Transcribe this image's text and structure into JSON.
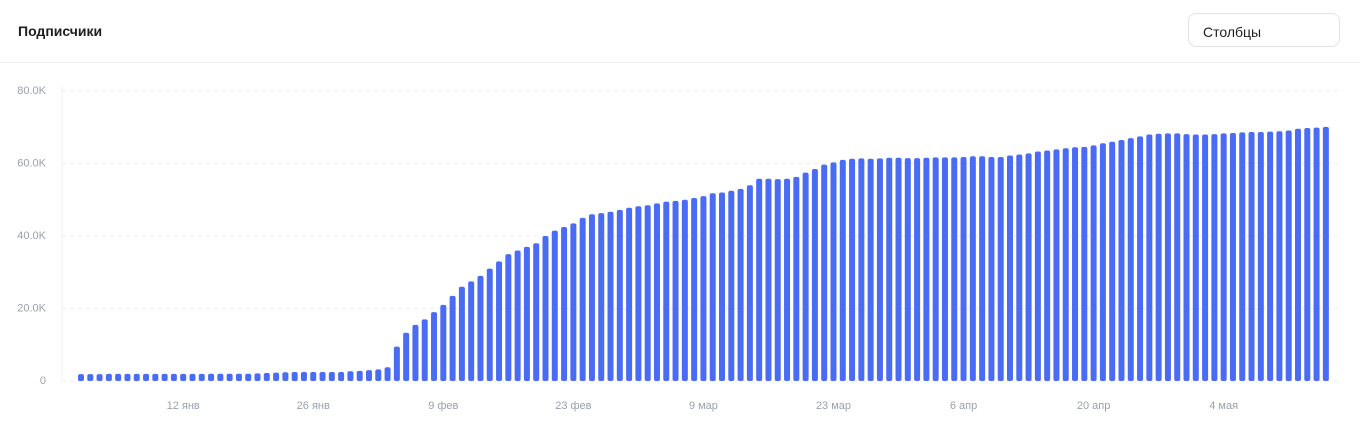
{
  "header": {
    "title": "Подписчики",
    "view_select": "Столбцы"
  },
  "chart_data": {
    "type": "bar",
    "color": "#4a6cf4",
    "grid": true,
    "categories": [
      null,
      null,
      null,
      null,
      null,
      null,
      null,
      null,
      null,
      null,
      null,
      "12 янв",
      null,
      null,
      null,
      null,
      null,
      null,
      null,
      null,
      null,
      null,
      null,
      null,
      null,
      "26 янв",
      null,
      null,
      null,
      null,
      null,
      null,
      null,
      null,
      null,
      null,
      null,
      null,
      null,
      "9 фев",
      null,
      null,
      null,
      null,
      null,
      null,
      null,
      null,
      null,
      null,
      null,
      null,
      null,
      "23 фев",
      null,
      null,
      null,
      null,
      null,
      null,
      null,
      null,
      null,
      null,
      null,
      null,
      null,
      "9 мар",
      null,
      null,
      null,
      null,
      null,
      null,
      null,
      null,
      null,
      null,
      null,
      null,
      null,
      "23 мар",
      null,
      null,
      null,
      null,
      null,
      null,
      null,
      null,
      null,
      null,
      null,
      null,
      null,
      "6 апр",
      null,
      null,
      null,
      null,
      null,
      null,
      null,
      null,
      null,
      null,
      null,
      null,
      null,
      "20 апр",
      null,
      null,
      null,
      null,
      null,
      null,
      null,
      null,
      null,
      null,
      null,
      null,
      null,
      "4 мая",
      null,
      null,
      null,
      null,
      null,
      null,
      null,
      null,
      null,
      null,
      null
    ],
    "values": [
      1900,
      1900,
      1900,
      1950,
      1950,
      1950,
      1950,
      1950,
      1950,
      1950,
      1950,
      1950,
      1950,
      1950,
      2000,
      2000,
      2000,
      2000,
      2000,
      2100,
      2200,
      2300,
      2400,
      2500,
      2500,
      2500,
      2500,
      2500,
      2500,
      2700,
      2800,
      3000,
      3200,
      3800,
      9500,
      13300,
      15500,
      17000,
      19000,
      21000,
      23500,
      26000,
      27500,
      29000,
      31000,
      33000,
      35000,
      36000,
      37000,
      38000,
      40000,
      41500,
      42500,
      43500,
      45000,
      46000,
      46300,
      46700,
      47200,
      47800,
      48200,
      48500,
      49000,
      49500,
      49700,
      50000,
      50500,
      51000,
      51800,
      52000,
      52500,
      53000,
      54000,
      55800,
      55800,
      55700,
      55800,
      56300,
      57500,
      58500,
      59700,
      60300,
      61000,
      61300,
      61400,
      61300,
      61400,
      61600,
      61600,
      61500,
      61500,
      61600,
      61700,
      61700,
      61700,
      61800,
      62000,
      62000,
      61800,
      61800,
      62200,
      62500,
      62800,
      63300,
      63600,
      63900,
      64200,
      64500,
      64600,
      65000,
      65600,
      66000,
      66500,
      67000,
      67500,
      68000,
      68200,
      68300,
      68300,
      68100,
      68000,
      68000,
      68100,
      68300,
      68400,
      68600,
      68700,
      68700,
      68800,
      68900,
      69100,
      69600,
      69800,
      69900,
      70100
    ],
    "ylim": [
      0,
      80000
    ],
    "yticks": [
      0,
      {
        "value": 20000,
        "label": "20.0K"
      },
      {
        "value": 40000,
        "label": "40.0K"
      },
      {
        "value": 60000,
        "label": "60.0K"
      },
      {
        "value": 80000,
        "label": "80.0K"
      }
    ]
  }
}
